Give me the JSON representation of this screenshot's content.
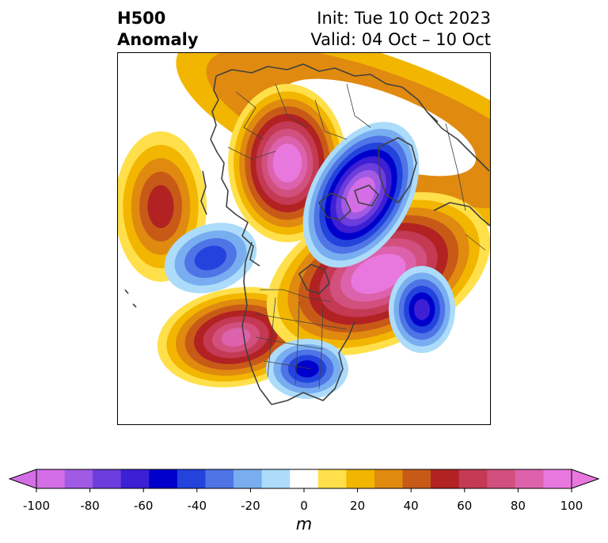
{
  "title": {
    "left_line1": "H500",
    "left_line2": "Anomaly",
    "right_line1": "Init: Tue 10 Oct 2023",
    "right_line2": "Valid: 04 Oct – 10 Oct"
  },
  "colorbar": {
    "unit": "m",
    "ticks": [
      "-100",
      "-80",
      "-60",
      "-40",
      "-20",
      "0",
      "20",
      "40",
      "60",
      "80",
      "100"
    ],
    "levels": [
      -100,
      -90,
      -80,
      -70,
      -60,
      -50,
      -40,
      -30,
      -20,
      -10,
      10,
      20,
      30,
      40,
      50,
      60,
      70,
      80,
      90,
      100
    ],
    "colors": [
      "#d46ee6",
      "#a05ae4",
      "#6b3ddc",
      "#3d1fd4",
      "#0000cc",
      "#2244dd",
      "#4f74e6",
      "#78aef0",
      "#acdcfa",
      "#ffffff",
      "#ffe04a",
      "#f2b600",
      "#e08a10",
      "#c85a18",
      "#b22222",
      "#c43a54",
      "#d2507e",
      "#dc62ac",
      "#e878de"
    ],
    "extend_low_color": "#d46ee6",
    "extend_high_color": "#e878de"
  },
  "map": {
    "projection": "polar-stereographic",
    "background": "#ffffff",
    "coastline_color": "#404040",
    "anomaly_features": [
      {
        "name": "north-pacific-ridge",
        "sign": "positive",
        "peak_m": 50
      },
      {
        "name": "alaska-trough",
        "sign": "negative",
        "peak_m": -40
      },
      {
        "name": "east-pacific-ridge",
        "sign": "positive",
        "peak_m": 80
      },
      {
        "name": "siberian-ridge",
        "sign": "positive",
        "peak_m": 100
      },
      {
        "name": "polar-trough",
        "sign": "negative",
        "peak_m": -100
      },
      {
        "name": "arctic-canada-ridge",
        "sign": "positive",
        "peak_m": 100
      },
      {
        "name": "north-atlantic-trough",
        "sign": "negative",
        "peak_m": -60
      },
      {
        "name": "eastern-us-trough",
        "sign": "negative",
        "peak_m": -50
      }
    ]
  }
}
